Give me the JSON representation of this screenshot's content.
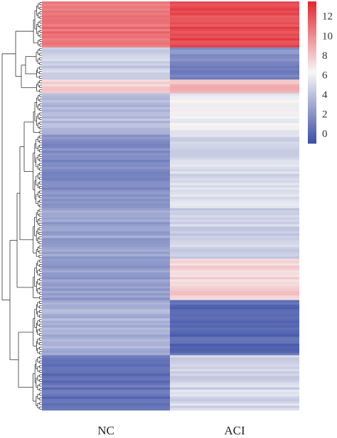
{
  "chart_data": {
    "type": "heatmap",
    "columns": [
      "NC",
      "ACI"
    ],
    "colorbar": {
      "min": -1,
      "max": 13.5,
      "ticks": [
        0,
        2,
        4,
        6,
        8,
        10,
        12
      ],
      "colors": {
        "low": "#3b4ea6",
        "mid": "#f7f7f7",
        "high": "#e3262e"
      }
    },
    "row_clusters": [
      {
        "rows": 20,
        "NC": 10.8,
        "ACI": 12.2
      },
      {
        "rows": 8,
        "NC": 4.8,
        "ACI": 1.8
      },
      {
        "rows": 6,
        "NC": 4.5,
        "ACI": 1.0
      },
      {
        "rows": 6,
        "NC": 7.5,
        "ACI": 8.3
      },
      {
        "rows": 18,
        "NC": 3.8,
        "ACI": 6.0
      },
      {
        "rows": 32,
        "NC": 1.8,
        "ACI": 5.0
      },
      {
        "rows": 22,
        "NC": 2.6,
        "ACI": 4.6
      },
      {
        "rows": 18,
        "NC": 2.4,
        "ACI": 7.6
      },
      {
        "rows": 24,
        "NC": 3.3,
        "ACI": 0.1
      },
      {
        "rows": 24,
        "NC": 0.6,
        "ACI": 4.9
      }
    ]
  },
  "dendrogram_color": "#333333"
}
